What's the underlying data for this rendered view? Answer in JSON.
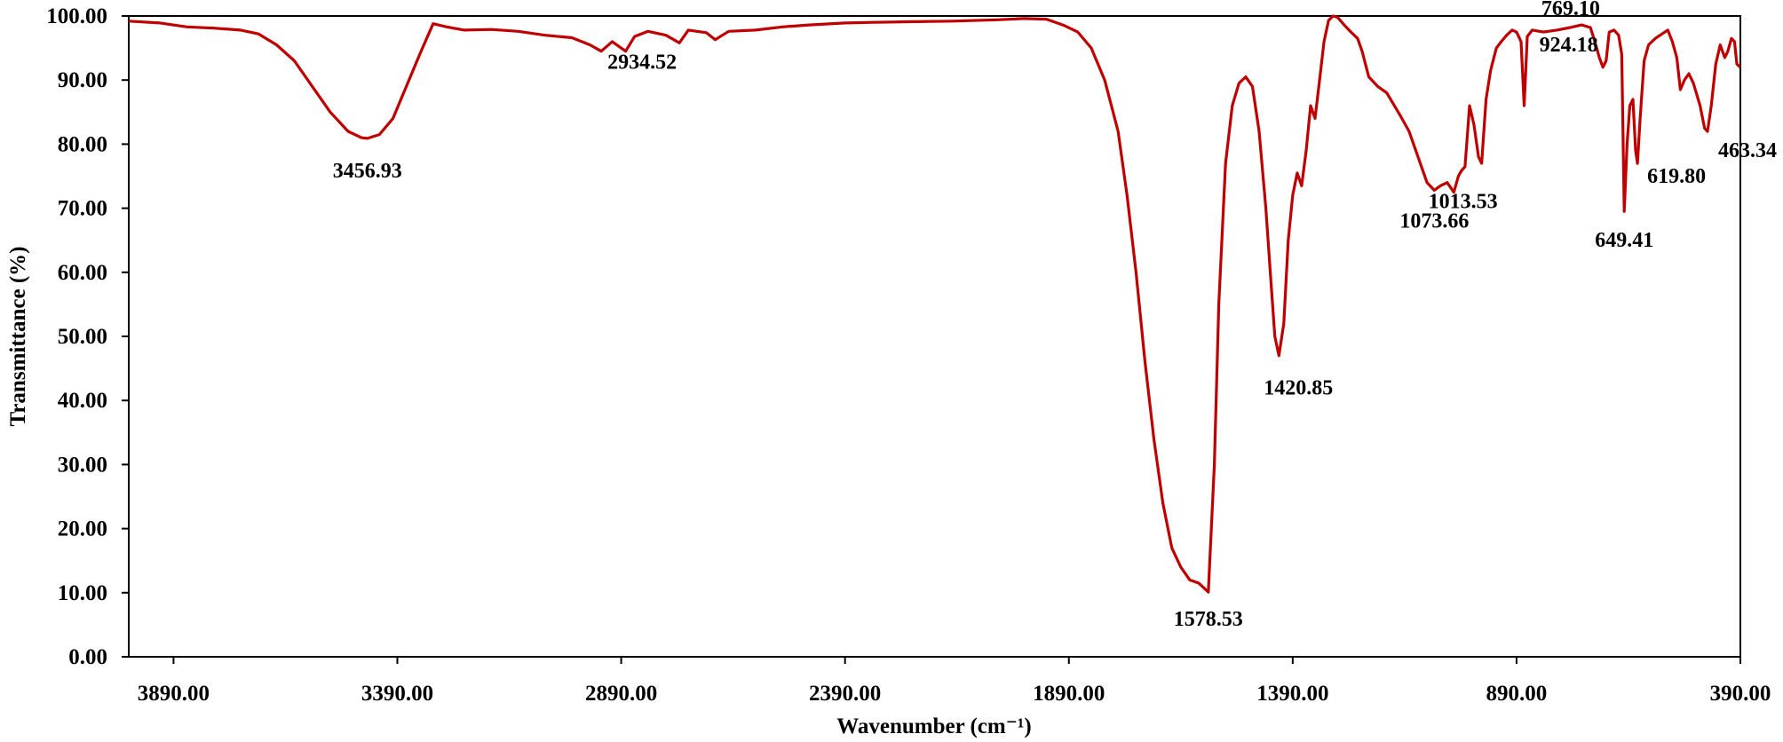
{
  "chart_data": {
    "type": "line",
    "title": "",
    "xlabel": "Wavenumber (cm⁻¹)",
    "ylabel": "Transmittance (%)",
    "xlim": [
      3990,
      390
    ],
    "ylim": [
      0,
      100
    ],
    "x_reversed": true,
    "grid": false,
    "legend": "none",
    "x_ticks": [
      3890,
      3390,
      2890,
      2390,
      1890,
      1390,
      890,
      390
    ],
    "x_tick_labels": [
      "3890.00",
      "3390.00",
      "2890.00",
      "2390.00",
      "1890.00",
      "1390.00",
      "890.00",
      "390.00"
    ],
    "y_ticks": [
      0,
      10,
      20,
      30,
      40,
      50,
      60,
      70,
      80,
      90,
      100
    ],
    "y_tick_labels": [
      "0.00",
      "10.00",
      "20.00",
      "30.00",
      "40.00",
      "50.00",
      "60.00",
      "70.00",
      "80.00",
      "90.00",
      "100.00"
    ],
    "series": [
      {
        "color": "#C00000",
        "points": [
          [
            3990,
            99.2
          ],
          [
            3920,
            98.9
          ],
          [
            3860,
            98.3
          ],
          [
            3800,
            98.1
          ],
          [
            3740,
            97.8
          ],
          [
            3700,
            97.2
          ],
          [
            3660,
            95.5
          ],
          [
            3620,
            93.0
          ],
          [
            3580,
            89.0
          ],
          [
            3540,
            85.0
          ],
          [
            3500,
            82.0
          ],
          [
            3470,
            81.0
          ],
          [
            3456.93,
            80.9
          ],
          [
            3430,
            81.5
          ],
          [
            3400,
            84.0
          ],
          [
            3370,
            89.0
          ],
          [
            3340,
            94.0
          ],
          [
            3310,
            98.8
          ],
          [
            3280,
            98.3
          ],
          [
            3240,
            97.8
          ],
          [
            3180,
            97.9
          ],
          [
            3120,
            97.6
          ],
          [
            3060,
            97.0
          ],
          [
            3000,
            96.6
          ],
          [
            2960,
            95.5
          ],
          [
            2934.52,
            94.5
          ],
          [
            2910,
            96.0
          ],
          [
            2880,
            94.5
          ],
          [
            2860,
            96.8
          ],
          [
            2830,
            97.6
          ],
          [
            2790,
            97.0
          ],
          [
            2760,
            95.8
          ],
          [
            2740,
            97.8
          ],
          [
            2700,
            97.4
          ],
          [
            2680,
            96.3
          ],
          [
            2650,
            97.6
          ],
          [
            2590,
            97.8
          ],
          [
            2530,
            98.3
          ],
          [
            2470,
            98.6
          ],
          [
            2390,
            98.9
          ],
          [
            2330,
            99.0
          ],
          [
            2250,
            99.1
          ],
          [
            2150,
            99.2
          ],
          [
            2050,
            99.4
          ],
          [
            1990,
            99.6
          ],
          [
            1940,
            99.5
          ],
          [
            1900,
            98.5
          ],
          [
            1870,
            97.5
          ],
          [
            1840,
            95.0
          ],
          [
            1810,
            90.0
          ],
          [
            1780,
            82.0
          ],
          [
            1760,
            72.0
          ],
          [
            1740,
            60.0
          ],
          [
            1720,
            46.0
          ],
          [
            1700,
            34.0
          ],
          [
            1680,
            24.0
          ],
          [
            1660,
            17.0
          ],
          [
            1640,
            14.0
          ],
          [
            1620,
            12.0
          ],
          [
            1600,
            11.5
          ],
          [
            1578.53,
            10.1
          ],
          [
            1565,
            30.0
          ],
          [
            1555,
            55.0
          ],
          [
            1540,
            77.0
          ],
          [
            1525,
            86.0
          ],
          [
            1510,
            89.5
          ],
          [
            1495,
            90.5
          ],
          [
            1480,
            89.0
          ],
          [
            1465,
            82.0
          ],
          [
            1450,
            70.0
          ],
          [
            1440,
            60.0
          ],
          [
            1430,
            50.0
          ],
          [
            1420.85,
            47.0
          ],
          [
            1410,
            52.0
          ],
          [
            1400,
            65.0
          ],
          [
            1390,
            72.0
          ],
          [
            1380,
            75.5
          ],
          [
            1370,
            73.5
          ],
          [
            1360,
            79.0
          ],
          [
            1350,
            86.0
          ],
          [
            1340,
            84.0
          ],
          [
            1330,
            90.0
          ],
          [
            1320,
            96.0
          ],
          [
            1310,
            99.3
          ],
          [
            1300,
            100.0
          ],
          [
            1290,
            99.8
          ],
          [
            1275,
            98.6
          ],
          [
            1260,
            97.5
          ],
          [
            1245,
            96.5
          ],
          [
            1235,
            94.5
          ],
          [
            1220,
            90.5
          ],
          [
            1200,
            89.0
          ],
          [
            1180,
            88.0
          ],
          [
            1150,
            84.5
          ],
          [
            1130,
            82.0
          ],
          [
            1110,
            78.0
          ],
          [
            1090,
            74.0
          ],
          [
            1073.66,
            72.8
          ],
          [
            1060,
            73.5
          ],
          [
            1045,
            74.0
          ],
          [
            1030,
            72.5
          ],
          [
            1020,
            75.0
          ],
          [
            1013.53,
            75.8
          ],
          [
            1005,
            76.5
          ],
          [
            995,
            86.0
          ],
          [
            985,
            83.0
          ],
          [
            975,
            78.0
          ],
          [
            968,
            77.0
          ],
          [
            958,
            87.0
          ],
          [
            948,
            91.5
          ],
          [
            935,
            95.0
          ],
          [
            924.18,
            96.0
          ],
          [
            912,
            97.0
          ],
          [
            900,
            97.8
          ],
          [
            890,
            97.5
          ],
          [
            880,
            96.0
          ],
          [
            873,
            86.0
          ],
          [
            866,
            96.8
          ],
          [
            855,
            97.8
          ],
          [
            830,
            97.5
          ],
          [
            800,
            97.8
          ],
          [
            770,
            98.2
          ],
          [
            745,
            98.6
          ],
          [
            725,
            98.2
          ],
          [
            715,
            96.0
          ],
          [
            705,
            93.5
          ],
          [
            697,
            92.0
          ],
          [
            690,
            93.0
          ],
          [
            683,
            97.5
          ],
          [
            672,
            97.8
          ],
          [
            662,
            97.0
          ],
          [
            655,
            94.0
          ],
          [
            649.41,
            69.5
          ],
          [
            643,
            80.0
          ],
          [
            637,
            86.0
          ],
          [
            630,
            87.0
          ],
          [
            624,
            79.0
          ],
          [
            619.8,
            77.0
          ],
          [
            614,
            84.0
          ],
          [
            605,
            93.0
          ],
          [
            595,
            95.5
          ],
          [
            580,
            96.5
          ],
          [
            565,
            97.2
          ],
          [
            552,
            97.8
          ],
          [
            542,
            96.0
          ],
          [
            532,
            93.5
          ],
          [
            524,
            88.5
          ],
          [
            515,
            90.0
          ],
          [
            505,
            91.0
          ],
          [
            495,
            89.5
          ],
          [
            480,
            86.0
          ],
          [
            470,
            82.5
          ],
          [
            463.34,
            82.0
          ],
          [
            455,
            86.0
          ],
          [
            445,
            92.5
          ],
          [
            435,
            95.5
          ],
          [
            425,
            93.5
          ],
          [
            418,
            94.5
          ],
          [
            410,
            96.5
          ],
          [
            403,
            96.0
          ],
          [
            398,
            92.5
          ],
          [
            390,
            92.0
          ]
        ]
      }
    ],
    "annotations": [
      {
        "text": "3456.93",
        "x": 3456.93,
        "y": 80.9
      },
      {
        "text": "2934.52",
        "x": 2934.52,
        "y": 94.5
      },
      {
        "text": "1578.53",
        "x": 1578.53,
        "y": 10.1
      },
      {
        "text": "1420.85",
        "x": 1420.85,
        "y": 47.0
      },
      {
        "text": "1073.66",
        "x": 1073.66,
        "y": 72.8
      },
      {
        "text": "1013.53",
        "x": 1013.53,
        "y": 75.8
      },
      {
        "text": "924.18",
        "x": 924.18,
        "y": 96.0
      },
      {
        "text": "769.10",
        "x": 769.1,
        "y": 98.2
      },
      {
        "text": "649.41",
        "x": 649.41,
        "y": 69.5
      },
      {
        "text": "619.80",
        "x": 619.8,
        "y": 77.0
      },
      {
        "text": "463.34",
        "x": 463.34,
        "y": 82.0
      }
    ]
  }
}
